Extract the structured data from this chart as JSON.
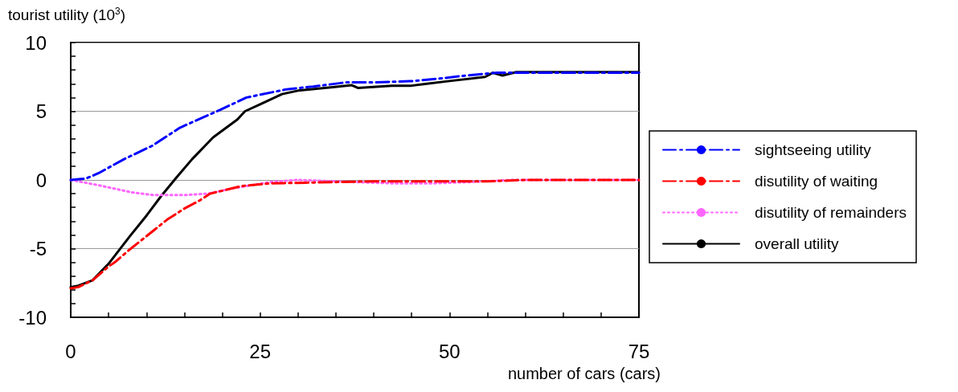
{
  "chart_data": {
    "type": "line",
    "ylabel": "tourist utility (10$^{3}$)",
    "xlabel": "number of cars (cars)",
    "xlim": [
      0,
      75
    ],
    "xticks": [
      0,
      {
        "value": 5,
        "label": null
      },
      {
        "value": 10,
        "label": null
      },
      {
        "value": 15,
        "label": null
      },
      {
        "value": 20,
        "label": null
      },
      25,
      {
        "value": 30,
        "label": null
      },
      {
        "value": 35,
        "label": null
      },
      {
        "value": 40,
        "label": null
      },
      {
        "value": 45,
        "label": null
      },
      50,
      {
        "value": 55,
        "label": null
      },
      {
        "value": 60,
        "label": null
      },
      {
        "value": 65,
        "label": null
      },
      {
        "value": 70,
        "label": null
      },
      75
    ],
    "ylim": [
      -10,
      10
    ],
    "yticks": [
      -10,
      {
        "value": -9,
        "label": null
      },
      {
        "value": -8,
        "label": null
      },
      {
        "value": -7,
        "label": null
      },
      {
        "value": -6,
        "label": null
      },
      -5,
      {
        "value": -4,
        "label": null
      },
      {
        "value": -3,
        "label": null
      },
      {
        "value": -2,
        "label": null
      },
      {
        "value": -1,
        "label": null
      },
      0,
      {
        "value": 1,
        "label": null
      },
      {
        "value": 2,
        "label": null
      },
      {
        "value": 3,
        "label": null
      },
      {
        "value": 4,
        "label": null
      },
      5,
      {
        "value": 6,
        "label": null
      },
      {
        "value": 7,
        "label": null
      },
      {
        "value": 8,
        "label": null
      },
      {
        "value": 9,
        "label": null
      },
      10
    ],
    "grid": "y",
    "legend": "right",
    "marker": "none",
    "series": [
      {
        "name": "sightseeing utility",
        "color": "#0000ff",
        "line_style": "dashed",
        "x": [
          0,
          2,
          3.7,
          7,
          10.8,
          14.4,
          19.7,
          23.2,
          28.5,
          32,
          36.3,
          40,
          45.1,
          49,
          52.2,
          56.1,
          58.8,
          65,
          75
        ],
        "values": [
          0,
          0.1,
          0.5,
          1.5,
          2.5,
          3.8,
          5.1,
          6,
          6.6,
          6.8,
          7.1,
          7.1,
          7.2,
          7.4,
          7.6,
          7.8,
          7.8,
          7.8,
          7.8
        ]
      },
      {
        "name": "disutility of waiting",
        "color": "#ff0000",
        "line_style": "dashed",
        "x": [
          0,
          1,
          2.9,
          5,
          5.8,
          7.7,
          10.9,
          12.7,
          15.1,
          17,
          18.4,
          22.5,
          26.4,
          31,
          40,
          55,
          60,
          75
        ],
        "values": [
          -7.9,
          -7.8,
          -7.3,
          -6.3,
          -6,
          -5.1,
          -3.7,
          -2.9,
          -2.05,
          -1.5,
          -1,
          -0.45,
          -0.25,
          -0.2,
          -0.1,
          -0.1,
          0,
          0
        ]
      },
      {
        "name": "disutility of remainders",
        "color": "#ff66ff",
        "line_style": "dotted",
        "x": [
          0,
          3.8,
          8,
          10.9,
          15.1,
          18.1,
          21.5,
          26.4,
          29.9,
          35,
          42.4,
          47.6,
          52.9,
          58.2,
          75
        ],
        "values": [
          0,
          -0.4,
          -0.9,
          -1.1,
          -1.1,
          -1,
          -0.6,
          -0.15,
          0,
          -0.1,
          -0.25,
          -0.25,
          -0.15,
          0,
          0
        ]
      },
      {
        "name": "overall utility",
        "color": "#000000",
        "line_style": "solid",
        "x": [
          0,
          1,
          2.9,
          5,
          7.8,
          10,
          11.9,
          14,
          16,
          18.8,
          22,
          23,
          25,
          27.9,
          30,
          34.6,
          37.1,
          37.9,
          42.4,
          44.8,
          47,
          50,
          54.7,
          55.7,
          57,
          58.8,
          65,
          75
        ],
        "values": [
          -7.8,
          -7.7,
          -7.3,
          -6.1,
          -4.1,
          -2.6,
          -1.2,
          0.2,
          1.5,
          3.1,
          4.4,
          5,
          5.5,
          6.25,
          6.5,
          6.75,
          6.9,
          6.7,
          6.85,
          6.85,
          7,
          7.2,
          7.5,
          7.8,
          7.6,
          7.85,
          7.85,
          7.85
        ]
      }
    ]
  }
}
